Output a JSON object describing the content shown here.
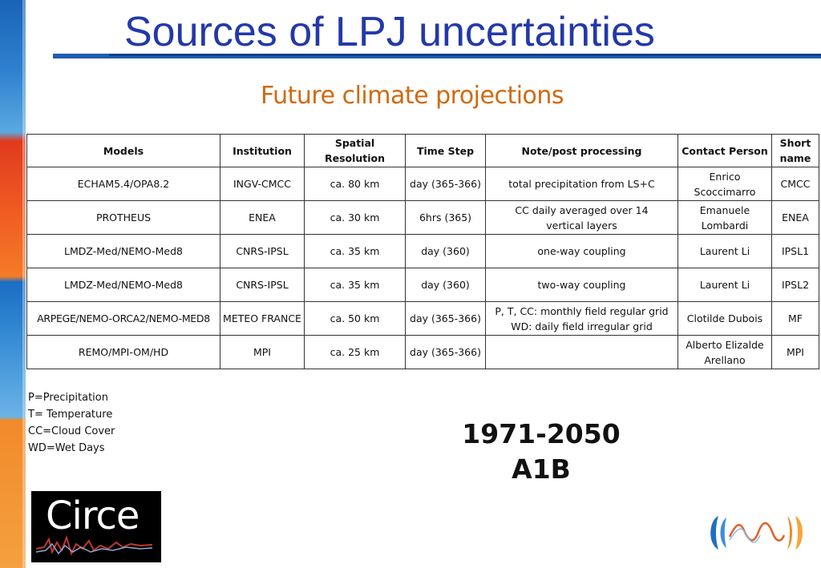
{
  "slide": {
    "title": "Sources of LPJ uncertainties",
    "subtitle": "Future climate projections"
  },
  "table": {
    "headers": [
      "Models",
      "Institution",
      "Spatial Resolution",
      "Time Step",
      "Note/post processing",
      "Contact Person",
      "Short\nname"
    ],
    "rows": [
      [
        "ECHAM5.4/OPA8.2",
        "INGV-CMCC",
        "ca. 80 km",
        "day (365-366)",
        "total precipitation from  LS+C",
        "Enrico\nScoccimarro",
        "CMCC"
      ],
      [
        "PROTHEUS",
        "ENEA",
        "ca. 30 km",
        "6hrs (365)",
        "CC daily averaged over 14\nvertical layers",
        "Emanuele\nLombardi",
        "ENEA"
      ],
      [
        "LMDZ-Med/NEMO-Med8",
        "CNRS-IPSL",
        "ca. 35 km",
        "day (360)",
        "one-way coupling",
        "Laurent Li",
        "IPSL1"
      ],
      [
        "LMDZ-Med/NEMO-Med8",
        "CNRS-IPSL",
        "ca. 35 km",
        "day (360)",
        "two-way coupling",
        "Laurent Li",
        "IPSL2"
      ],
      [
        "ARPEGE/NEMO-ORCA2/NEMO-MED8",
        "METEO FRANCE",
        "ca. 50 km",
        "day (365-366)",
        "P, T, CC: monthly field regular grid\nWD: daily field irregular grid",
        "Clotilde Dubois",
        "MF"
      ],
      [
        "REMO/MPI-OM/HD",
        "MPI",
        "ca. 25 km",
        "day (365-366)",
        "",
        "Alberto Elizalde\nArellano",
        "MPI"
      ]
    ]
  },
  "legend": [
    "P=Precipitation",
    "T= Temperature",
    "CC=Cloud Cover",
    "WD=Wet Days"
  ],
  "period": {
    "years": "1971-2050",
    "scenario": "A1B"
  },
  "logos": {
    "circe_text": "Circe"
  },
  "colors": {
    "title": "#2339a8",
    "subtitle": "#d06a10",
    "rule": "#1f5db0"
  }
}
